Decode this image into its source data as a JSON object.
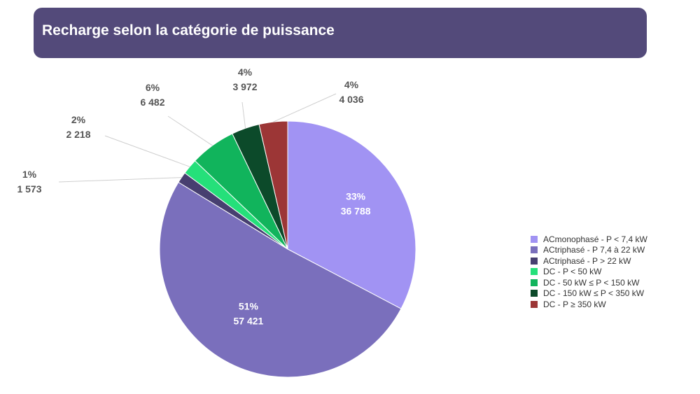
{
  "header": {
    "title": "Recharge selon la catégorie de puissance"
  },
  "chart_data": {
    "type": "pie",
    "categories": [
      "ACmonophasé - P < 7,4 kW",
      "ACtriphasé - P 7,4 à 22 kW",
      "ACtriphasé - P > 22 kW",
      "DC - P < 50 kW",
      "DC - 50 kW ≤ P < 150 kW",
      "DC - 150 kW  ≤ P < 350 kW",
      "DC - P ≥ 350 kW"
    ],
    "values": [
      36788,
      57421,
      1573,
      2218,
      6482,
      3972,
      4036
    ],
    "value_labels": [
      "36 788",
      "57 421",
      "1 573",
      "2 218",
      "6 482",
      "3 972",
      "4 036"
    ],
    "percent_labels": [
      "33%",
      "51%",
      "1%",
      "2%",
      "6%",
      "4%",
      "4%"
    ],
    "colors": [
      "#a193f3",
      "#7a6fbc",
      "#473f70",
      "#25e07a",
      "#11b45c",
      "#0c4a2a",
      "#9c3636"
    ],
    "start_angle_deg": 0,
    "direction": "clockwise",
    "legend_position": "right"
  }
}
